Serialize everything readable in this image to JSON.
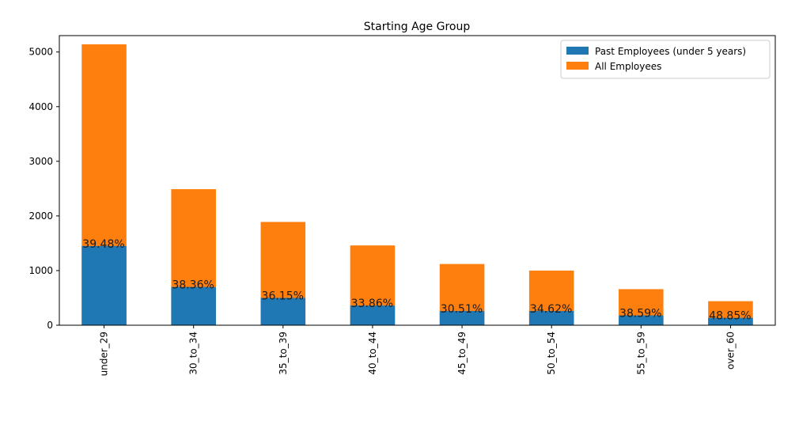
{
  "chart_data": {
    "type": "bar",
    "stacked": "overlay",
    "title": "Starting Age Group",
    "xlabel": "",
    "ylabel": "",
    "categories": [
      "under_29",
      "30_to_34",
      "35_to_39",
      "40_to_44",
      "45_to_49",
      "50_to_54",
      "55_to_59",
      "over_60"
    ],
    "series": [
      {
        "name": "Past Employees (under 5 years)",
        "color": "#1f77b4",
        "values": [
          1450,
          700,
          500,
          360,
          260,
          260,
          180,
          135
        ]
      },
      {
        "name": "All Employees",
        "color": "#ff7f0e",
        "values": [
          5140,
          2490,
          1890,
          1460,
          1120,
          1000,
          660,
          440
        ]
      }
    ],
    "percent_labels": [
      "39.48%",
      "38.36%",
      "36.15%",
      "33.86%",
      "30.51%",
      "34.62%",
      "38.59%",
      "48.85%"
    ],
    "ylim": [
      0,
      5300
    ],
    "yticks": [
      0,
      1000,
      2000,
      3000,
      4000,
      5000
    ],
    "grid": false,
    "legend_position": "top-right"
  }
}
